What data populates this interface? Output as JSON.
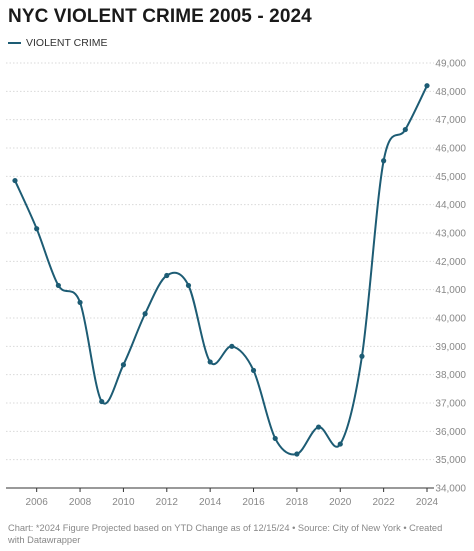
{
  "chart_data": {
    "type": "line",
    "title": "NYC VIOLENT CRIME 2005 - 2024",
    "xlabel": "",
    "ylabel": "",
    "legend_position": "top-left",
    "grid": true,
    "xlim": [
      2005,
      2024
    ],
    "ylim": [
      34000,
      49000
    ],
    "x_ticks": [
      2006,
      2008,
      2010,
      2012,
      2014,
      2016,
      2018,
      2020,
      2022,
      2024
    ],
    "y_ticks": [
      {
        "value": 34000,
        "label": "34,000"
      },
      {
        "value": 35000,
        "label": "35,000"
      },
      {
        "value": 36000,
        "label": "36,000"
      },
      {
        "value": 37000,
        "label": "37,000"
      },
      {
        "value": 38000,
        "label": "38,000"
      },
      {
        "value": 39000,
        "label": "39,000"
      },
      {
        "value": 40000,
        "label": "40,000"
      },
      {
        "value": 41000,
        "label": "41,000"
      },
      {
        "value": 42000,
        "label": "42,000"
      },
      {
        "value": 43000,
        "label": "43,000"
      },
      {
        "value": 44000,
        "label": "44,000"
      },
      {
        "value": 45000,
        "label": "45,000"
      },
      {
        "value": 46000,
        "label": "46,000"
      },
      {
        "value": 47000,
        "label": "47,000"
      },
      {
        "value": 48000,
        "label": "48,000"
      },
      {
        "value": 49000,
        "label": "49,000"
      }
    ],
    "series": [
      {
        "name": "VIOLENT CRIME",
        "color": "#1d5c74",
        "x": [
          2005,
          2006,
          2007,
          2008,
          2009,
          2010,
          2011,
          2012,
          2013,
          2014,
          2015,
          2016,
          2017,
          2018,
          2019,
          2020,
          2021,
          2022,
          2023,
          2024
        ],
        "values": [
          44850,
          43150,
          41150,
          40550,
          37050,
          38350,
          40150,
          41500,
          41150,
          38450,
          39000,
          38150,
          35750,
          35200,
          36150,
          35550,
          38650,
          45550,
          46650,
          48200
        ]
      }
    ]
  },
  "footer": {
    "note": "Chart: *2024 Figure Projected based on YTD Change as of 12/15/24 • Source: City of New York • Created with Datawrapper"
  }
}
